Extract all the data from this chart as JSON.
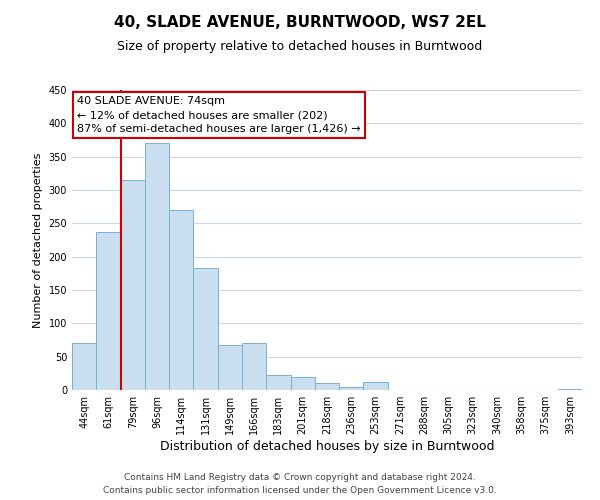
{
  "title": "40, SLADE AVENUE, BURNTWOOD, WS7 2EL",
  "subtitle": "Size of property relative to detached houses in Burntwood",
  "xlabel": "Distribution of detached houses by size in Burntwood",
  "ylabel": "Number of detached properties",
  "bar_labels": [
    "44sqm",
    "61sqm",
    "79sqm",
    "96sqm",
    "114sqm",
    "131sqm",
    "149sqm",
    "166sqm",
    "183sqm",
    "201sqm",
    "218sqm",
    "236sqm",
    "253sqm",
    "271sqm",
    "288sqm",
    "305sqm",
    "323sqm",
    "340sqm",
    "358sqm",
    "375sqm",
    "393sqm"
  ],
  "bar_values": [
    70,
    237,
    315,
    370,
    270,
    183,
    68,
    70,
    22,
    20,
    10,
    5,
    12,
    0,
    0,
    0,
    0,
    0,
    0,
    0,
    2
  ],
  "bar_color": "#c9dff0",
  "bar_edge_color": "#7ab0d4",
  "ylim": [
    0,
    450
  ],
  "yticks": [
    0,
    50,
    100,
    150,
    200,
    250,
    300,
    350,
    400,
    450
  ],
  "vline_index": 2,
  "vline_color": "#cc0000",
  "annotation_title": "40 SLADE AVENUE: 74sqm",
  "annotation_line1": "← 12% of detached houses are smaller (202)",
  "annotation_line2": "87% of semi-detached houses are larger (1,426) →",
  "annotation_box_color": "#ffffff",
  "annotation_box_edge_color": "#cc0000",
  "footer_line1": "Contains HM Land Registry data © Crown copyright and database right 2024.",
  "footer_line2": "Contains public sector information licensed under the Open Government Licence v3.0.",
  "background_color": "#ffffff",
  "grid_color": "#c8d8e8",
  "title_fontsize": 11,
  "subtitle_fontsize": 9,
  "ylabel_fontsize": 8,
  "xlabel_fontsize": 9,
  "tick_fontsize": 7,
  "footer_fontsize": 6.5,
  "annotation_fontsize": 8
}
